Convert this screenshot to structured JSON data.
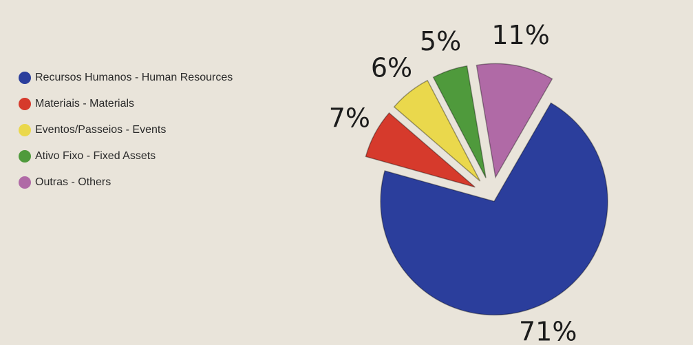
{
  "chart_data": {
    "type": "pie",
    "categories": [
      "Recursos Humanos - Human Resources",
      "Materiais - Materials",
      "Eventos/Passeios - Events",
      "Ativo Fixo - Fixed Assets",
      "Outras - Others"
    ],
    "values": [
      71,
      7,
      6,
      5,
      11
    ],
    "value_labels": [
      "71%",
      "7%",
      "6%",
      "5%",
      "11%"
    ],
    "colors": [
      "#2b3e9c",
      "#d63a2c",
      "#ead84c",
      "#4f9a3c",
      "#b06aa6"
    ],
    "legend": "left"
  }
}
